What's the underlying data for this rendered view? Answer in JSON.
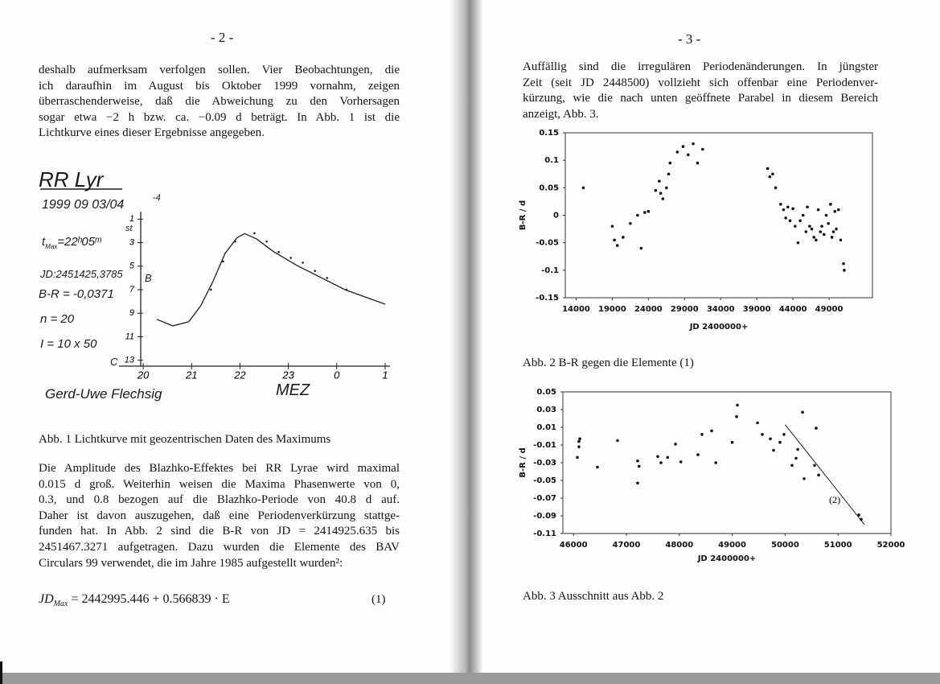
{
  "left": {
    "page_number": "- 2 -",
    "paragraph1": [
      "deshalb aufmerksam verfolgen sollen. Vier Beobachtungen, die",
      "ich daraufhin im August bis Oktober 1999 vornahm, zeigen",
      "überraschenderweise, daß die Abweichung zu den Vorhersagen",
      "sogar etwa −2 h bzw. ca. −0.09 d beträgt. In Abb. 1 ist die",
      "Lichtkurve eines dieser Ergebnisse angegeben."
    ],
    "figure1": {
      "type": "line",
      "title": "RR Lyr",
      "date": "1999 09 03/04",
      "date_exponent": "-4",
      "t_max": {
        "symbol": "t",
        "subscript": "Max",
        "value": "=22ʰ05ᵐ"
      },
      "jd": "JD:2451425,3785",
      "b_minus_r": "B-R = -0,0371",
      "n": "n = 20",
      "instrument": "I = 10 x 50",
      "band": "B",
      "unit": "st",
      "comparison": "C",
      "observer": "Gerd-Uwe Flechsig",
      "timezone": "MEZ",
      "xlim": [
        19.5,
        25.1
      ],
      "ylim": [
        0.5,
        13.5
      ],
      "y_inverted": true,
      "xticks": [
        20,
        21,
        22,
        23,
        {
          "value": 24,
          "label": "0"
        },
        {
          "value": 25,
          "label": "1"
        }
      ],
      "yticks": [
        1,
        3,
        5,
        7,
        9,
        11,
        13
      ],
      "curve": {
        "x": [
          20.28,
          20.61,
          20.94,
          21.19,
          21.44,
          21.69,
          21.94,
          22.1,
          22.35,
          22.68,
          23.18,
          23.68,
          24.17,
          25.0
        ],
        "y": [
          9.52,
          10.07,
          9.73,
          8.36,
          6.32,
          3.93,
          2.57,
          2.23,
          2.7,
          3.73,
          4.95,
          5.98,
          7.0,
          8.23
        ]
      },
      "observations": {
        "x": [
          21.4,
          21.65,
          21.9,
          22.3,
          22.55,
          22.8,
          23.05,
          23.3,
          23.55,
          23.8,
          24.2
        ],
        "y": [
          7.0,
          4.6,
          2.9,
          2.2,
          2.9,
          3.8,
          4.3,
          4.7,
          5.4,
          6.0,
          7.0
        ]
      }
    },
    "caption": "Abb. 1 Lichtkurve mit geozentrischen Daten des Maximums",
    "paragraph2": [
      "Die Amplitude des Blazhko-Effektes bei RR Lyrae wird maximal",
      "0.015 d groß. Weiterhin weisen die Maxima Phasenwerte von 0,",
      "0.3, und 0.8 bezogen auf die Blazhko-Periode von 40.8 d auf.",
      "Daher ist davon auszugehen, daß eine Periodenverkürzung stattge-",
      "funden hat. In Abb. 2 sind die B-R von JD = 2414925.635 bis",
      "2451467.3271 aufgetragen. Dazu wurden die Elemente des BAV",
      "Circulars 99 verwendet, die im Jahre 1985 aufgestellt wurden²:"
    ],
    "formula": {
      "lhs": "JD",
      "subscript": "Max",
      "rhs": "= 2442995.446 + 0.566839 · E",
      "number": "(1)"
    }
  },
  "right": {
    "page_number": "- 3 -",
    "paragraph": [
      "Auffällig sind die irregulären Periodenänderungen. In jüngster",
      "Zeit (seit JD 2448500) vollzieht sich offenbar eine Periodenver-",
      "kürzung, wie die nach unten geöffnete Parabel in diesem Bereich",
      "anzeigt, Abb. 3."
    ],
    "figure2": {
      "type": "scatter",
      "xlabel": "JD 2400000+",
      "ylabel": "B-R / d",
      "color": "#111111",
      "xlim": [
        12500,
        55000
      ],
      "ylim": [
        -0.15,
        0.15
      ],
      "xticks": [
        14000,
        19000,
        24000,
        29000,
        34000,
        39000,
        44000,
        49000
      ],
      "yticks": [
        -0.15,
        -0.1,
        -0.05,
        0,
        0.05,
        0.1,
        0.15
      ],
      "x": [
        15000,
        19000,
        19300,
        19700,
        20500,
        21500,
        22500,
        23000,
        23500,
        24000,
        25000,
        25500,
        26000,
        26500,
        26800,
        27000,
        25700,
        28000,
        28800,
        29500,
        30200,
        30800,
        31500,
        40500,
        40800,
        41200,
        41600,
        42300,
        42700,
        43000,
        43300,
        43600,
        44000,
        44300,
        44700,
        45000,
        45400,
        45800,
        46000,
        46300,
        46600,
        46900,
        47200,
        47500,
        47800,
        48000,
        48300,
        48600,
        48900,
        49200,
        49400,
        49600,
        49800,
        50000,
        50300,
        50600,
        51000,
        51100
      ],
      "y": [
        0.05,
        -0.02,
        -0.045,
        -0.055,
        -0.04,
        -0.015,
        0.0,
        -0.06,
        0.005,
        0.007,
        0.045,
        0.062,
        0.03,
        0.05,
        0.075,
        0.095,
        0.04,
        0.115,
        0.125,
        0.11,
        0.13,
        0.095,
        0.12,
        0.085,
        0.07,
        0.075,
        0.05,
        0.02,
        0.01,
        -0.005,
        0.015,
        -0.01,
        0.012,
        -0.02,
        -0.05,
        -0.01,
        0.0,
        -0.03,
        0.015,
        -0.02,
        -0.025,
        -0.04,
        -0.045,
        0.01,
        -0.03,
        -0.02,
        -0.035,
        0.0,
        -0.015,
        0.02,
        -0.04,
        -0.03,
        0.007,
        -0.025,
        0.01,
        -0.045,
        -0.088,
        -0.1
      ]
    },
    "caption2": "Abb. 2 B-R gegen die Elemente (1)",
    "figure3": {
      "type": "scatter",
      "xlabel": "JD 2400000+",
      "ylabel": "B-R / d",
      "color": "#111111",
      "xlim": [
        45800,
        52000
      ],
      "ylim": [
        -0.11,
        0.05
      ],
      "xticks": [
        46000,
        47000,
        48000,
        49000,
        50000,
        51000,
        52000
      ],
      "yticks": [
        -0.11,
        -0.09,
        -0.07,
        -0.05,
        -0.03,
        -0.01,
        0.01,
        0.03,
        0.05
      ],
      "x": [
        46104,
        46104,
        46120,
        46074,
        46453,
        46833,
        47213,
        47240,
        47213,
        47593,
        47654,
        47780,
        47928,
        48030,
        48353,
        48429,
        48612,
        48690,
        49000,
        49083,
        49098,
        49478,
        49569,
        49721,
        49782,
        49903,
        49979,
        50131,
        50207,
        50238,
        50329,
        50359,
        50587,
        50557,
        50633,
        51393,
        51438
      ],
      "y": [
        -0.006,
        -0.012,
        -0.003,
        -0.024,
        -0.035,
        -0.005,
        -0.028,
        -0.034,
        -0.053,
        -0.023,
        -0.03,
        -0.024,
        -0.009,
        -0.029,
        -0.021,
        0.002,
        0.006,
        -0.03,
        -0.007,
        0.022,
        0.035,
        0.015,
        0.002,
        -0.003,
        -0.016,
        -0.007,
        0.002,
        -0.033,
        -0.025,
        -0.015,
        0.027,
        -0.048,
        0.009,
        -0.033,
        -0.044,
        -0.089,
        -0.094
      ],
      "trend": {
        "x": [
          50000,
          51500
        ],
        "y": [
          0.013,
          -0.1
        ],
        "label": "(2)"
      }
    },
    "caption3": "Abb. 3 Ausschnitt aus Abb. 2"
  }
}
